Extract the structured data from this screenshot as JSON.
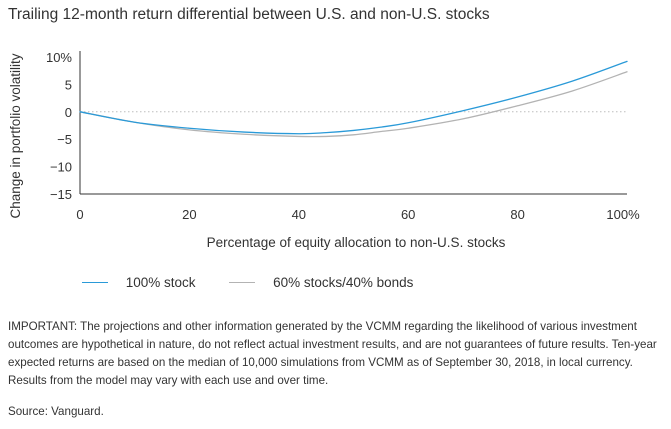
{
  "chart_data": {
    "type": "line",
    "title": "Trailing 12-month return differential between U.S. and non-U.S. stocks",
    "xlabel": "Percentage of equity allocation to non-U.S. stocks",
    "ylabel": "Change in portfolio volatility",
    "xlim": [
      0,
      100
    ],
    "ylim": [
      -15,
      10
    ],
    "x_ticks": [
      "0",
      "20",
      "40",
      "60",
      "80",
      "100%"
    ],
    "y_ticks": [
      "10%",
      "5",
      "0",
      "−5",
      "−10",
      "−15"
    ],
    "x_tick_values": [
      0,
      20,
      40,
      60,
      80,
      100
    ],
    "y_tick_values": [
      10,
      5,
      0,
      -5,
      -10,
      -15
    ],
    "zero_line": true,
    "legend_position": "bottom-left",
    "series": [
      {
        "name": "100% stock",
        "color": "#2a9ad8",
        "x": [
          0,
          10,
          20,
          30,
          40,
          45,
          50,
          55,
          60,
          70,
          80,
          90,
          100
        ],
        "y": [
          0,
          -1.9,
          -3.0,
          -3.7,
          -4.0,
          -3.8,
          -3.4,
          -2.8,
          -2.0,
          0.2,
          2.7,
          5.6,
          9.2
        ]
      },
      {
        "name": "60% stocks/40% bonds",
        "color": "#b3b3b3",
        "x": [
          0,
          10,
          20,
          30,
          40,
          45,
          50,
          55,
          60,
          70,
          80,
          90,
          100
        ],
        "y": [
          0,
          -1.9,
          -3.3,
          -4.1,
          -4.5,
          -4.5,
          -4.2,
          -3.6,
          -3.0,
          -1.3,
          1.1,
          3.8,
          7.3
        ]
      }
    ]
  },
  "note": "IMPORTANT: The projections and other information generated by the VCMM regarding the likelihood of various investment outcomes are hypothetical in nature, do not reflect actual investment results, and are not guarantees of future results. Ten-year expected returns are based on the median of 10,000 simulations from VCMM as of September 30, 2018, in local currency. Results from the model may vary with each use and over time.",
  "source": "Source: Vanguard."
}
